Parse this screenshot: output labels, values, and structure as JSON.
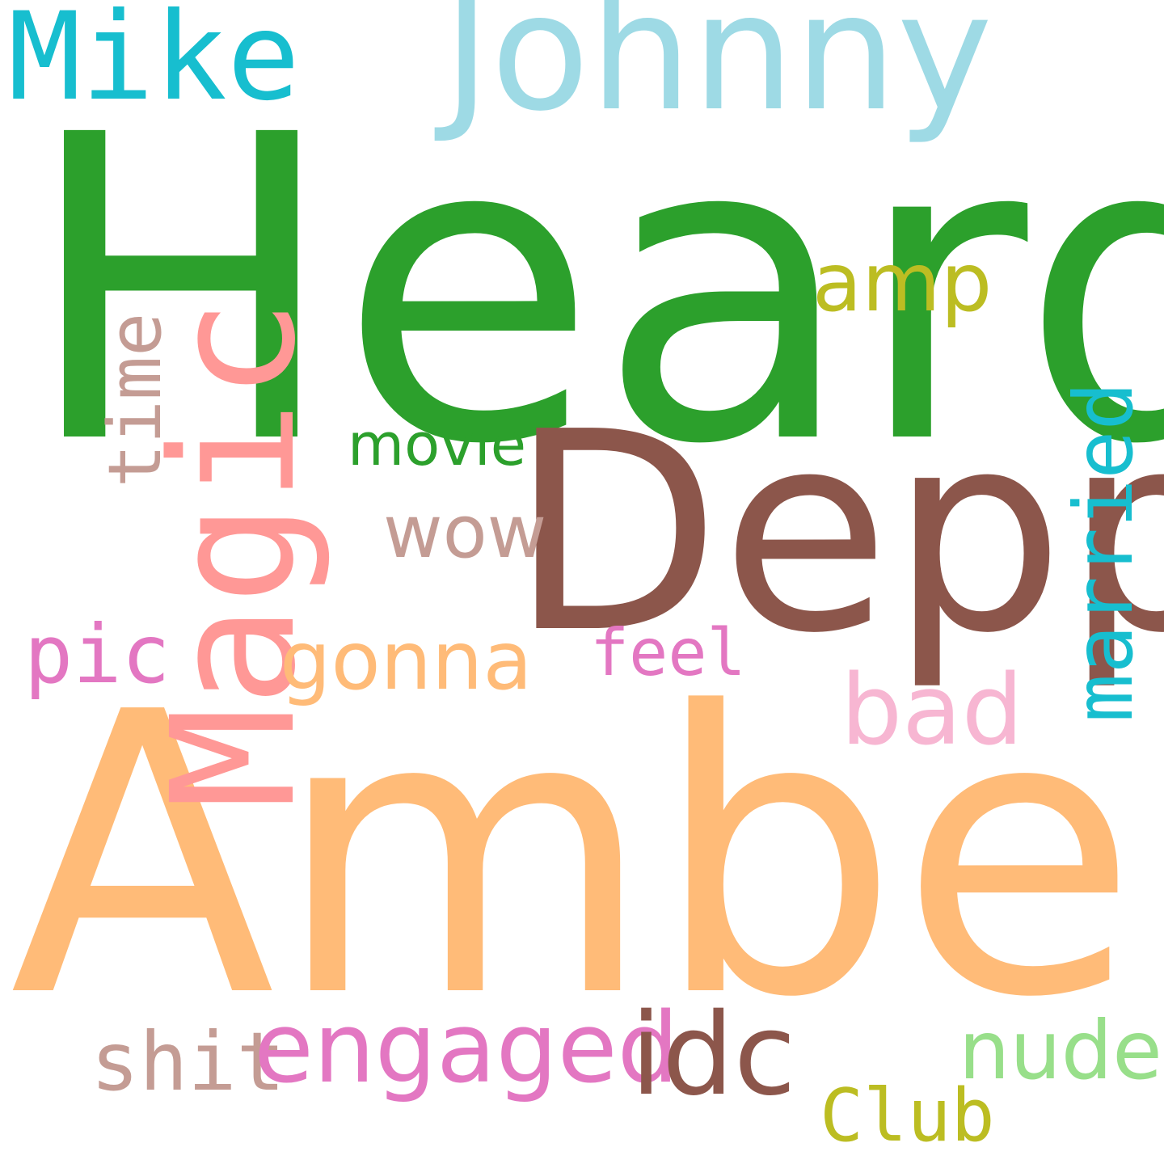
{
  "colors": {
    "background": "#ffffff",
    "green": "#2ca02c",
    "orange_light": "#ffbb78",
    "brown": "#8c564b",
    "cyan_light": "#9edae5",
    "cyan": "#17becf",
    "pink_light": "#ff9896",
    "olive": "#bcbd22",
    "tan": "#c49c94",
    "magenta": "#e377c2",
    "pink_pale": "#f7b6d2",
    "green_light": "#98df8a"
  },
  "words": {
    "heard": {
      "text": "Heard",
      "color": "#2ca02c"
    },
    "amber": {
      "text": "Amber",
      "color": "#ffbb78"
    },
    "depp": {
      "text": "Depp",
      "color": "#8c564b"
    },
    "johnny": {
      "text": "Johnny",
      "color": "#9edae5"
    },
    "mike": {
      "text": "Mike",
      "color": "#17becf"
    },
    "magic": {
      "text": "Magic",
      "color": "#ff9896"
    },
    "amp": {
      "text": "amp",
      "color": "#bcbd22"
    },
    "time": {
      "text": "time",
      "color": "#c49c94"
    },
    "movie": {
      "text": "movie",
      "color": "#2ca02c"
    },
    "wow": {
      "text": "wow",
      "color": "#c49c94"
    },
    "married": {
      "text": "married",
      "color": "#17becf"
    },
    "pic": {
      "text": "pic",
      "color": "#e377c2"
    },
    "gonna": {
      "text": "gonna",
      "color": "#ffbb78"
    },
    "feel": {
      "text": "feel",
      "color": "#e377c2"
    },
    "bad": {
      "text": "bad",
      "color": "#f7b6d2"
    },
    "shit": {
      "text": "shit",
      "color": "#c49c94"
    },
    "engaged": {
      "text": "engaged",
      "color": "#e377c2"
    },
    "idc": {
      "text": "idc",
      "color": "#8c564b"
    },
    "nude": {
      "text": "nude",
      "color": "#98df8a"
    },
    "club": {
      "text": "Club",
      "color": "#bcbd22"
    }
  }
}
